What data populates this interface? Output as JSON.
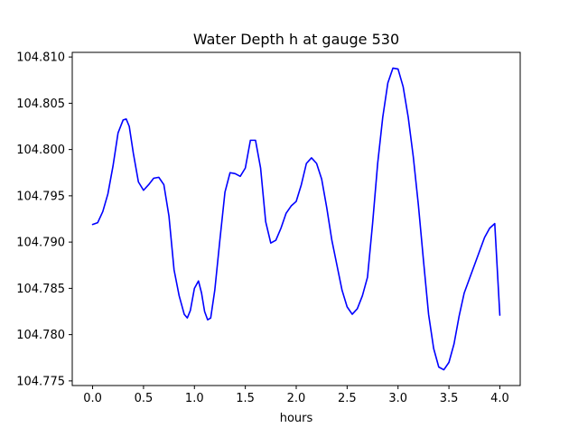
{
  "chart_data": {
    "type": "line",
    "title": "Water Depth h at gauge 530",
    "xlabel": "hours",
    "ylabel": "",
    "xlim": [
      -0.2,
      4.2
    ],
    "ylim": [
      104.7745,
      104.8105
    ],
    "xticks": [
      0.0,
      0.5,
      1.0,
      1.5,
      2.0,
      2.5,
      3.0,
      3.5,
      4.0
    ],
    "xtick_labels": [
      "0.0",
      "0.5",
      "1.0",
      "1.5",
      "2.0",
      "2.5",
      "3.0",
      "3.5",
      "4.0"
    ],
    "yticks": [
      104.775,
      104.78,
      104.785,
      104.79,
      104.795,
      104.8,
      104.805,
      104.81
    ],
    "ytick_labels": [
      "104.775",
      "104.780",
      "104.785",
      "104.790",
      "104.795",
      "104.800",
      "104.805",
      "104.810"
    ],
    "grid": false,
    "legend": "none",
    "series": [
      {
        "color": "#0000ff",
        "x": [
          0.0,
          0.05,
          0.1,
          0.15,
          0.2,
          0.25,
          0.3,
          0.33,
          0.36,
          0.4,
          0.45,
          0.5,
          0.55,
          0.6,
          0.65,
          0.7,
          0.75,
          0.8,
          0.85,
          0.9,
          0.93,
          0.96,
          1.0,
          1.04,
          1.07,
          1.1,
          1.13,
          1.16,
          1.2,
          1.25,
          1.3,
          1.35,
          1.4,
          1.45,
          1.5,
          1.55,
          1.6,
          1.65,
          1.7,
          1.75,
          1.8,
          1.85,
          1.9,
          1.95,
          2.0,
          2.05,
          2.1,
          2.15,
          2.2,
          2.25,
          2.3,
          2.35,
          2.4,
          2.45,
          2.5,
          2.55,
          2.6,
          2.65,
          2.7,
          2.75,
          2.8,
          2.85,
          2.9,
          2.95,
          3.0,
          3.05,
          3.1,
          3.15,
          3.2,
          3.25,
          3.3,
          3.35,
          3.4,
          3.45,
          3.5,
          3.55,
          3.6,
          3.65,
          3.7,
          3.75,
          3.8,
          3.85,
          3.9,
          3.95,
          4.0
        ],
        "y": [
          104.7919,
          104.7921,
          104.7933,
          104.7952,
          104.7982,
          104.8018,
          104.8032,
          104.8033,
          104.8025,
          104.7996,
          104.7965,
          104.7956,
          104.7962,
          104.7969,
          104.797,
          104.7962,
          104.7928,
          104.787,
          104.7842,
          104.7822,
          104.7818,
          104.7826,
          104.785,
          104.7858,
          104.7845,
          104.7825,
          104.7816,
          104.7818,
          104.7848,
          104.7902,
          104.7954,
          104.7975,
          104.7974,
          104.7971,
          104.798,
          104.801,
          104.801,
          104.798,
          104.7922,
          104.7899,
          104.7902,
          104.7915,
          104.7931,
          104.7939,
          104.7944,
          104.7962,
          104.7985,
          104.7991,
          104.7985,
          104.7968,
          104.7937,
          104.7902,
          104.7875,
          104.7848,
          104.783,
          104.7822,
          104.7828,
          104.7842,
          104.7862,
          104.792,
          104.7985,
          104.8035,
          104.8072,
          104.8088,
          104.8087,
          104.8068,
          104.8035,
          104.7992,
          104.794,
          104.788,
          104.7822,
          104.7785,
          104.7765,
          104.7762,
          104.777,
          104.779,
          104.782,
          104.7845,
          104.786,
          104.7875,
          104.789,
          104.7905,
          104.7915,
          104.792,
          104.7821
        ]
      }
    ]
  }
}
